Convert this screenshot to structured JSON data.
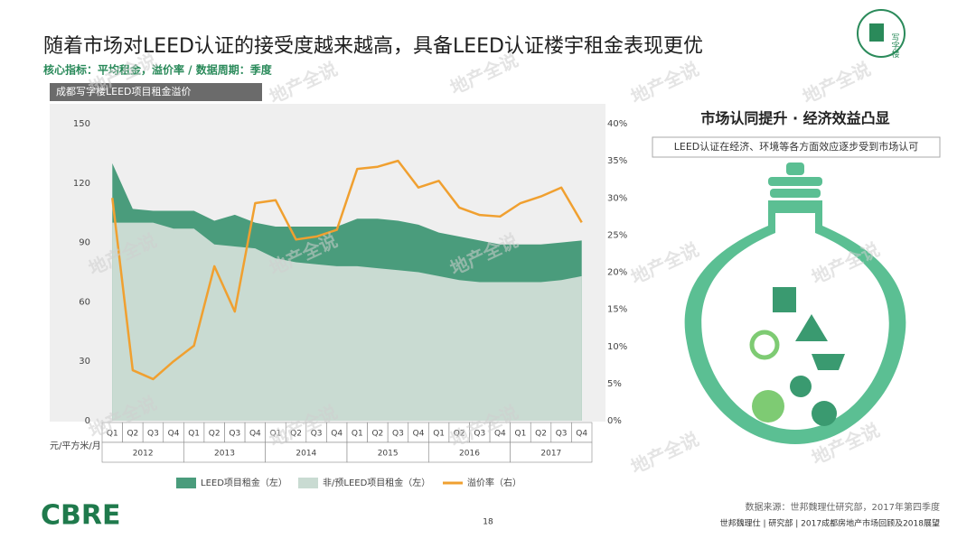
{
  "slide": {
    "title": "随着市场对LEED认证的接受度越来越高，具备LEED认证楼宇租金表现更优",
    "subtitle": "核心指标：平均租金，溢价率 / 数据周期：季度",
    "icon_label": "写字楼",
    "panel_title": "市场认同提升 · 经济效益凸显",
    "panel_text": "LEED认证在经济、环境等各方面效应逐步受到市场认可",
    "source": "数据来源：世邦魏理仕研究部，2017年第四季度",
    "footer": "世邦魏理仕 | 研究部 | 2017成都房地产市场回顾及2018展望",
    "page_number": "18",
    "logo": "CBRE",
    "watermark": "地产全说"
  },
  "chart_data": {
    "type": "area",
    "title": "成都写字楼LEED项目租金溢价",
    "y_label": "元/平方米/月",
    "categories": [
      "Q1",
      "Q2",
      "Q3",
      "Q4",
      "Q1",
      "Q2",
      "Q3",
      "Q4",
      "Q1",
      "Q2",
      "Q3",
      "Q4",
      "Q1",
      "Q2",
      "Q3",
      "Q4",
      "Q1",
      "Q2",
      "Q3",
      "Q4",
      "Q1",
      "Q2",
      "Q3",
      "Q4"
    ],
    "years": [
      "2012",
      "2013",
      "2014",
      "2015",
      "2016",
      "2017"
    ],
    "series": [
      {
        "name": "LEED项目租金（左）",
        "type": "area",
        "color": "#4a9c7c",
        "values": [
          130,
          107,
          106,
          106,
          106,
          101,
          104,
          100,
          98,
          98,
          98,
          98,
          102,
          102,
          101,
          99,
          95,
          93,
          91,
          89,
          89,
          89,
          90,
          91
        ]
      },
      {
        "name": "非/预LEED项目租金（左）",
        "type": "area",
        "color": "#c9dbd2",
        "values": [
          100,
          100,
          100,
          97,
          97,
          89,
          88,
          87,
          82,
          80,
          79,
          78,
          78,
          77,
          76,
          75,
          73,
          71,
          70,
          70,
          70,
          70,
          71,
          73
        ]
      },
      {
        "name": "溢价率（右）",
        "type": "line",
        "axis": "y2",
        "color": "#f0a030",
        "values": [
          30,
          6.8,
          5.6,
          8,
          10.1,
          20.8,
          14.7,
          29.3,
          29.7,
          24.4,
          24.8,
          25.7,
          33.9,
          34.2,
          35,
          31.4,
          32.3,
          28.7,
          27.7,
          27.5,
          29.3,
          30.2,
          31.4,
          26.7
        ]
      }
    ],
    "ylim": [
      0,
      150
    ],
    "yticks": [
      0,
      30,
      60,
      90,
      120,
      150
    ],
    "y2lim": [
      0,
      40
    ],
    "y2ticks": [
      {
        "value": 0,
        "label": "0%"
      },
      {
        "value": 5,
        "label": "5%"
      },
      {
        "value": 10,
        "label": "10%"
      },
      {
        "value": 15,
        "label": "15%"
      },
      {
        "value": 20,
        "label": "20%"
      },
      {
        "value": 25,
        "label": "25%"
      },
      {
        "value": 30,
        "label": "30%"
      },
      {
        "value": 35,
        "label": "35%"
      },
      {
        "value": 40,
        "label": "40%"
      }
    ]
  }
}
